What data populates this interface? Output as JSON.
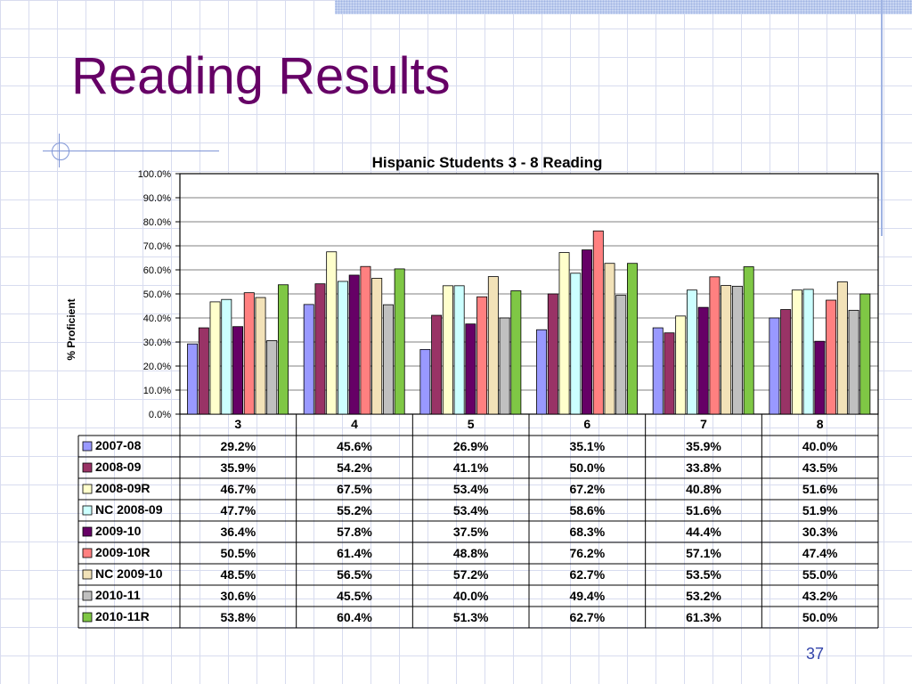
{
  "slide": {
    "title": "Reading Results",
    "page_number": "37"
  },
  "chart_data": {
    "type": "bar",
    "title": "Hispanic Students 3 - 8 Reading",
    "ylabel": "% Proficient",
    "xlabel": "",
    "ylim": [
      0,
      100
    ],
    "y_ticks": [
      "0.0%",
      "10.0%",
      "20.0%",
      "30.0%",
      "40.0%",
      "50.0%",
      "60.0%",
      "70.0%",
      "80.0%",
      "90.0%",
      "100.0%"
    ],
    "categories": [
      "3",
      "4",
      "5",
      "6",
      "7",
      "8"
    ],
    "grid": true,
    "legend": "data table below chart",
    "series": [
      {
        "name": "2007-08",
        "color": "#9999ff",
        "values": [
          29.2,
          45.6,
          26.9,
          35.1,
          35.9,
          40.0
        ],
        "labels": [
          "29.2%",
          "45.6%",
          "26.9%",
          "35.1%",
          "35.9%",
          "40.0%"
        ]
      },
      {
        "name": "2008-09",
        "color": "#993366",
        "values": [
          35.9,
          54.2,
          41.1,
          50.0,
          33.8,
          43.5
        ],
        "labels": [
          "35.9%",
          "54.2%",
          "41.1%",
          "50.0%",
          "33.8%",
          "43.5%"
        ]
      },
      {
        "name": "2008-09R",
        "color": "#ffffcc",
        "values": [
          46.7,
          67.5,
          53.4,
          67.2,
          40.8,
          51.6
        ],
        "labels": [
          "46.7%",
          "67.5%",
          "53.4%",
          "67.2%",
          "40.8%",
          "51.6%"
        ]
      },
      {
        "name": "NC 2008-09",
        "color": "#ccffff",
        "values": [
          47.7,
          55.2,
          53.4,
          58.6,
          51.6,
          51.9
        ],
        "labels": [
          "47.7%",
          "55.2%",
          "53.4%",
          "58.6%",
          "51.6%",
          "51.9%"
        ]
      },
      {
        "name": "2009-10",
        "color": "#660066",
        "values": [
          36.4,
          57.8,
          37.5,
          68.3,
          44.4,
          30.3
        ],
        "labels": [
          "36.4%",
          "57.8%",
          "37.5%",
          "68.3%",
          "44.4%",
          "30.3%"
        ]
      },
      {
        "name": "2009-10R",
        "color": "#ff8080",
        "values": [
          50.5,
          61.4,
          48.8,
          76.2,
          57.1,
          47.4
        ],
        "labels": [
          "50.5%",
          "61.4%",
          "48.8%",
          "76.2%",
          "57.1%",
          "47.4%"
        ]
      },
      {
        "name": "NC 2009-10",
        "color": "#f2e2b8",
        "values": [
          48.5,
          56.5,
          57.2,
          62.7,
          53.5,
          55.0
        ],
        "labels": [
          "48.5%",
          "56.5%",
          "57.2%",
          "62.7%",
          "53.5%",
          "55.0%"
        ]
      },
      {
        "name": "2010-11",
        "color": "#c0c0c0",
        "values": [
          30.6,
          45.5,
          40.0,
          49.4,
          53.2,
          43.2
        ],
        "labels": [
          "30.6%",
          "45.5%",
          "40.0%",
          "49.4%",
          "53.2%",
          "43.2%"
        ]
      },
      {
        "name": "2010-11R",
        "color": "#7fc745",
        "values": [
          53.8,
          60.4,
          51.3,
          62.7,
          61.3,
          50.0
        ],
        "labels": [
          "53.8%",
          "60.4%",
          "51.3%",
          "62.7%",
          "61.3%",
          "50.0%"
        ]
      }
    ]
  }
}
